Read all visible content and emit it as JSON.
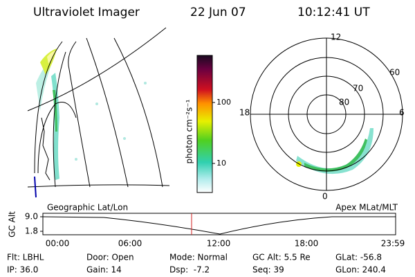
{
  "header": {
    "instrument": "Ultraviolet Imager",
    "date": "22 Jun 07",
    "time": "10:12:41 UT"
  },
  "colorbar": {
    "label": "photon cm⁻²s⁻¹",
    "ticks": [
      "100",
      "10"
    ]
  },
  "polar_plot": {
    "mlt_labels": [
      "12",
      "18",
      "6",
      "0"
    ],
    "lat_labels": [
      "60",
      "70",
      "80"
    ]
  },
  "captions": {
    "left": "Geographic Lat/Lon",
    "right": "Apex MLat/MLT"
  },
  "altitude_plot": {
    "ylabel": "GC Alt",
    "yticks": [
      "9.0",
      "1.8"
    ],
    "xticks": [
      "00:00",
      "06:00",
      "12:00",
      "18:00",
      "23:59"
    ]
  },
  "footer": {
    "rows": [
      [
        "Flt: LBHL",
        "Door: Open",
        "Mode: Normal",
        "GC Alt: 5.5 Re",
        "GLat: -56.8"
      ],
      [
        "IP: 36.0",
        "Gain: 14",
        "Dsp:  -7.2",
        "Seq: 39",
        "GLon: 240.4"
      ]
    ]
  }
}
